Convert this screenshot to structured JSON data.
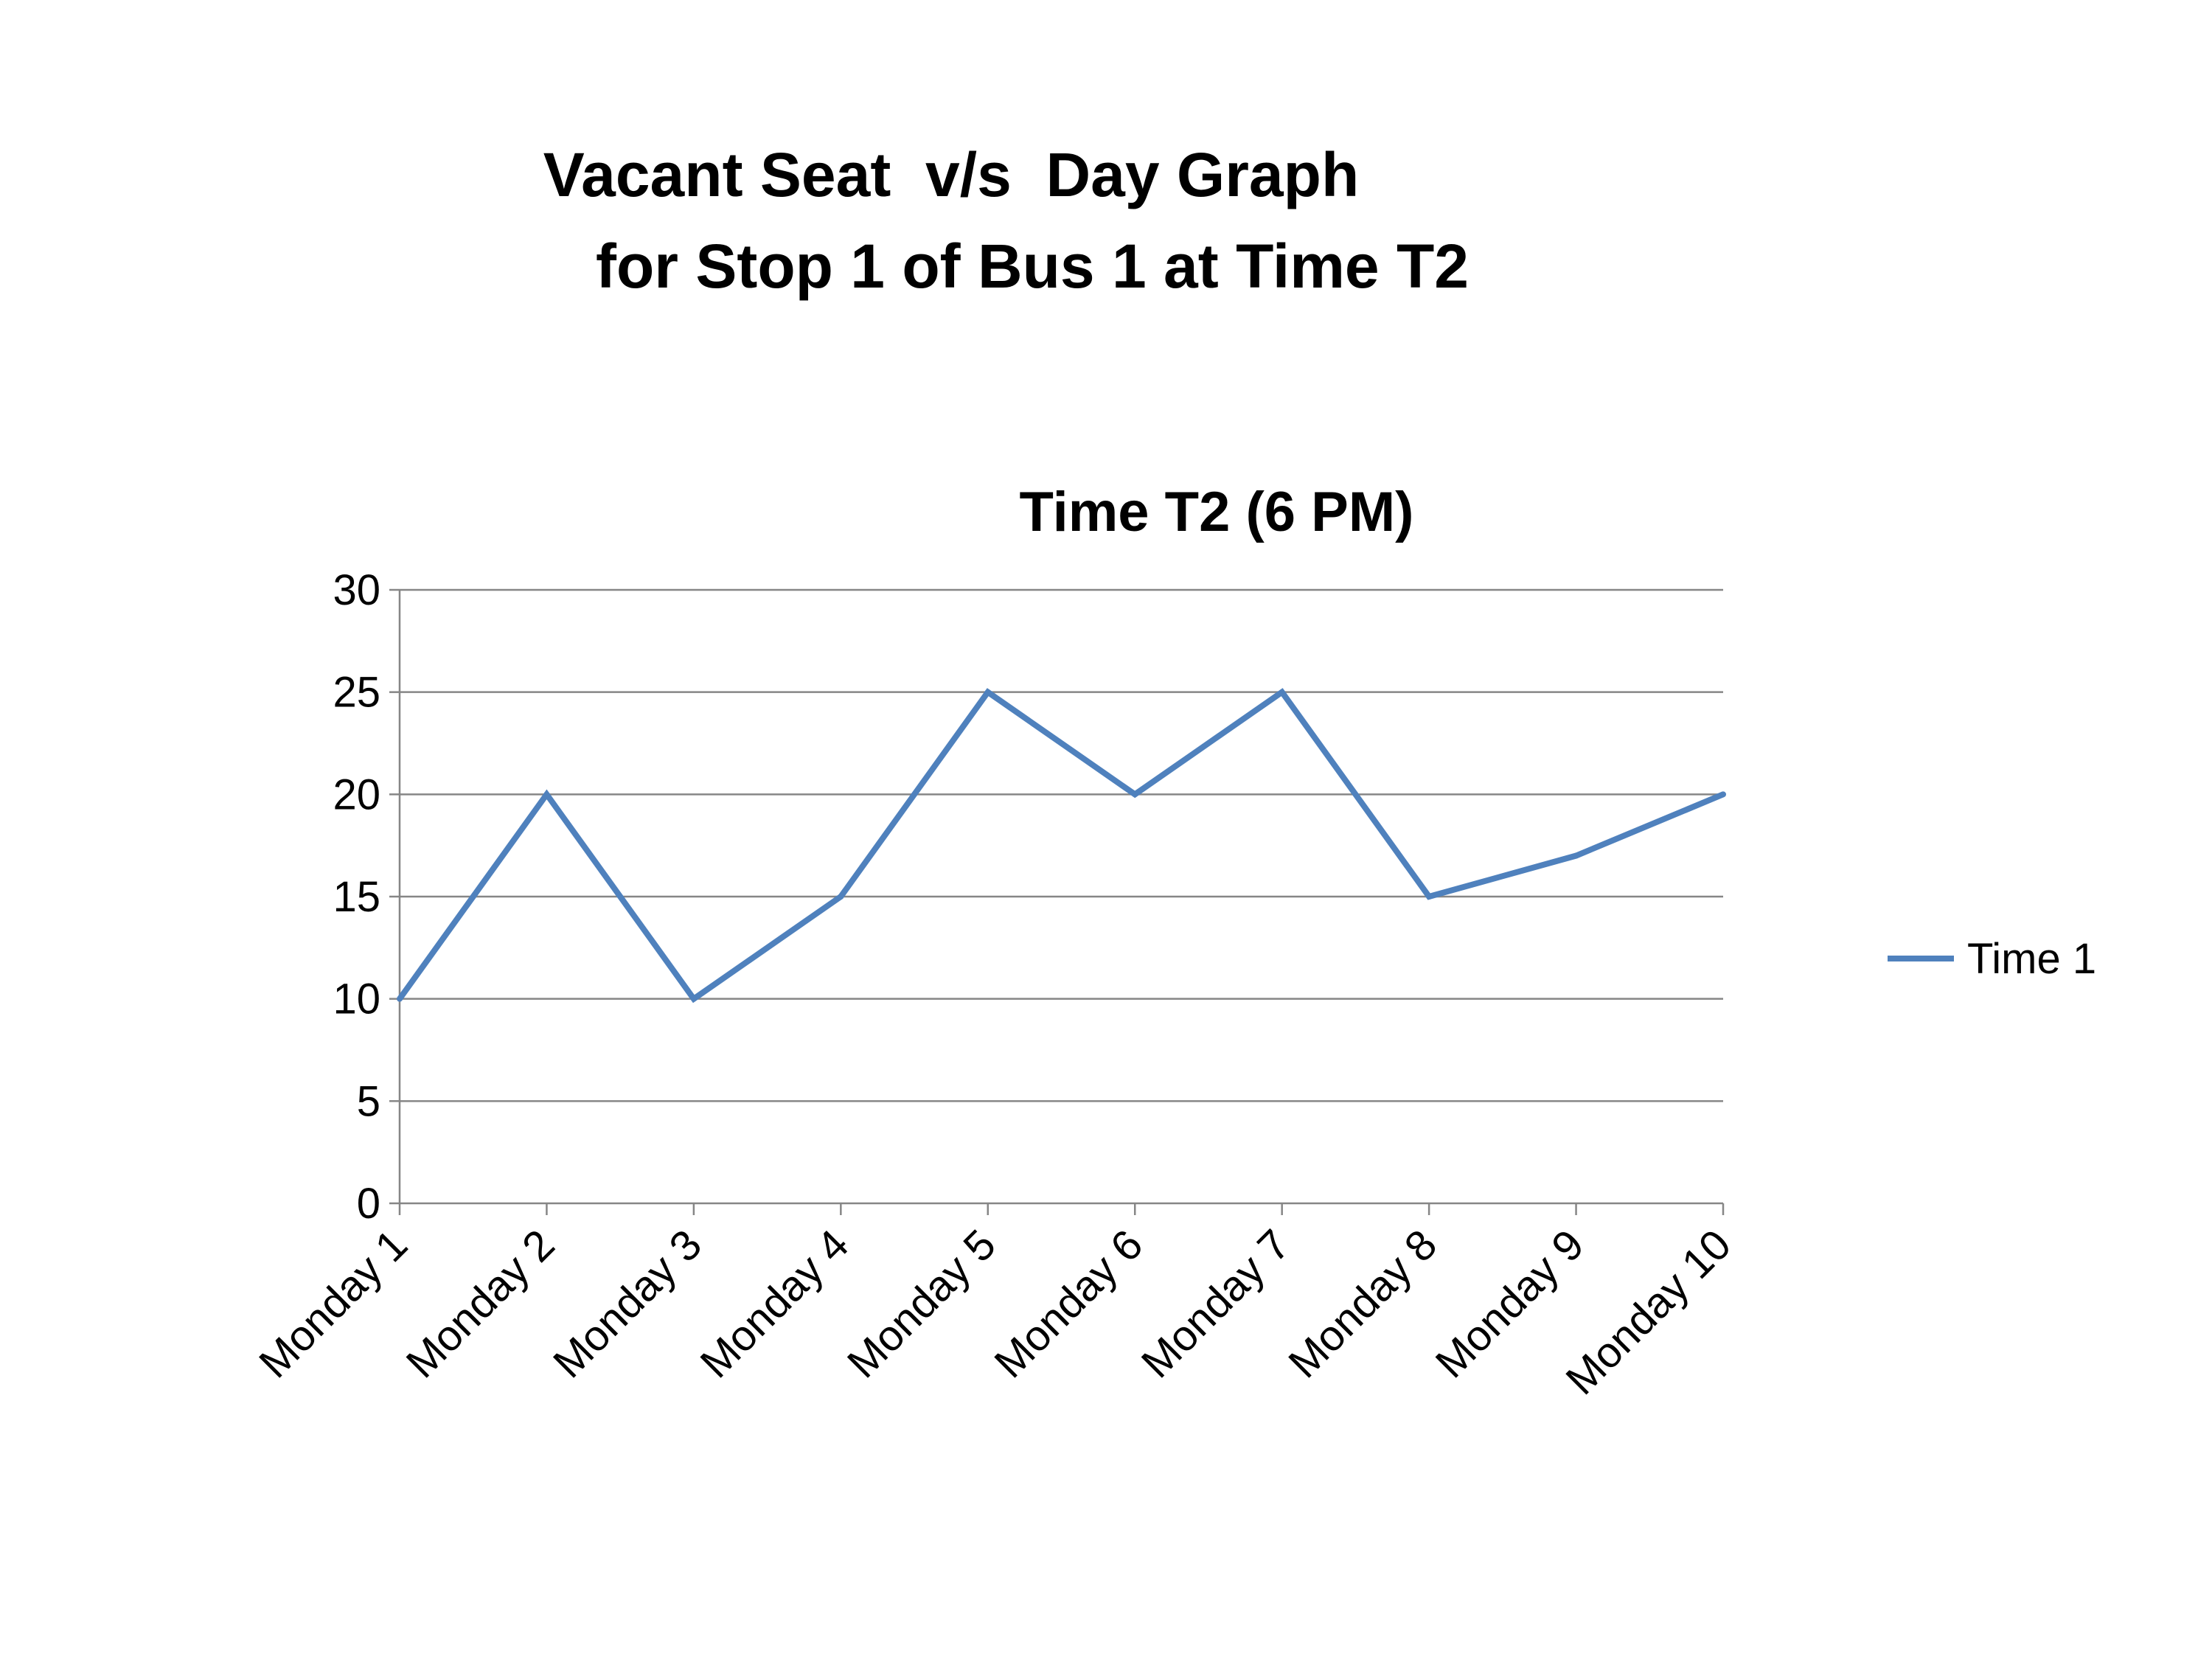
{
  "slide": {
    "title_line1": "Vacant Seat  v/s  Day Graph",
    "title_line2": "for Stop 1 of Bus 1 at Time T2"
  },
  "chart_data": {
    "type": "line",
    "title": "Time T2 (6 PM)",
    "categories": [
      "Monday 1",
      "Monday 2",
      "Monday 3",
      "Monday 4",
      "Monday 5",
      "Monday 6",
      "Monday 7",
      "Monday 8",
      "Monday 9",
      "Monday 10"
    ],
    "series": [
      {
        "name": "Time 1",
        "values": [
          10,
          20,
          10,
          15,
          25,
          20,
          25,
          15,
          17,
          20
        ]
      }
    ],
    "yticks": [
      0,
      5,
      10,
      15,
      20,
      25,
      30
    ],
    "ylim": [
      0,
      30
    ],
    "xlabel": "",
    "ylabel": "",
    "grid": true,
    "legend": "right",
    "colors": {
      "series": "#4F81BD",
      "grid": "#868686",
      "axis": "#868686"
    }
  }
}
